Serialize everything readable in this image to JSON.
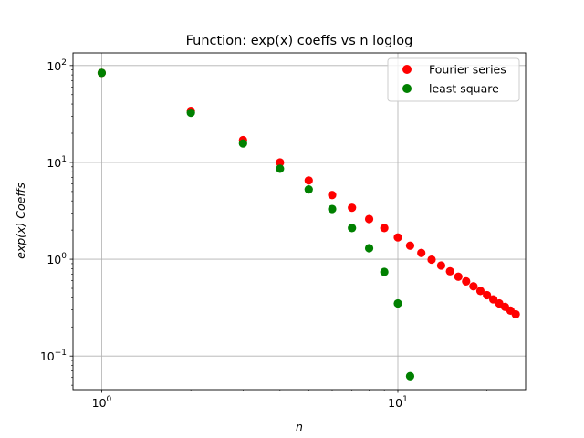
{
  "chart_data": {
    "type": "scatter",
    "title": "Function: exp(x) coeffs vs n loglog",
    "xlabel": "n",
    "ylabel": "exp(x) Coeffs",
    "xscale": "log",
    "yscale": "log",
    "xlim": [
      0.8,
      27
    ],
    "ylim": [
      0.045,
      135
    ],
    "grid": true,
    "legend_position": "top-right",
    "x_ticks": [
      {
        "value": 1,
        "base": "10",
        "exp": "0"
      },
      {
        "value": 10,
        "base": "10",
        "exp": "1"
      }
    ],
    "y_ticks": [
      {
        "value": 0.1,
        "base": "10",
        "exp": "−1"
      },
      {
        "value": 1,
        "base": "10",
        "exp": "0"
      },
      {
        "value": 10,
        "base": "10",
        "exp": "1"
      },
      {
        "value": 100,
        "base": "10",
        "exp": "2"
      }
    ],
    "series": [
      {
        "name": "Fourier series",
        "color": "#ff0000",
        "x": [
          1,
          2,
          3,
          4,
          5,
          6,
          7,
          8,
          9,
          10,
          11,
          12,
          13,
          14,
          15,
          16,
          17,
          18,
          19,
          20,
          21,
          22,
          23,
          24,
          25
        ],
        "y": [
          84,
          34,
          17,
          10.0,
          6.5,
          4.6,
          3.4,
          2.6,
          2.1,
          1.68,
          1.38,
          1.16,
          0.99,
          0.86,
          0.75,
          0.66,
          0.59,
          0.525,
          0.47,
          0.425,
          0.385,
          0.35,
          0.322,
          0.295,
          0.27
        ]
      },
      {
        "name": "least square",
        "color": "#008000",
        "x": [
          1,
          2,
          3,
          4,
          5,
          6,
          7,
          8,
          9,
          10,
          11
        ],
        "y": [
          84,
          32.5,
          15.7,
          8.6,
          5.25,
          3.3,
          2.1,
          1.3,
          0.74,
          0.35,
          0.062
        ]
      }
    ]
  }
}
